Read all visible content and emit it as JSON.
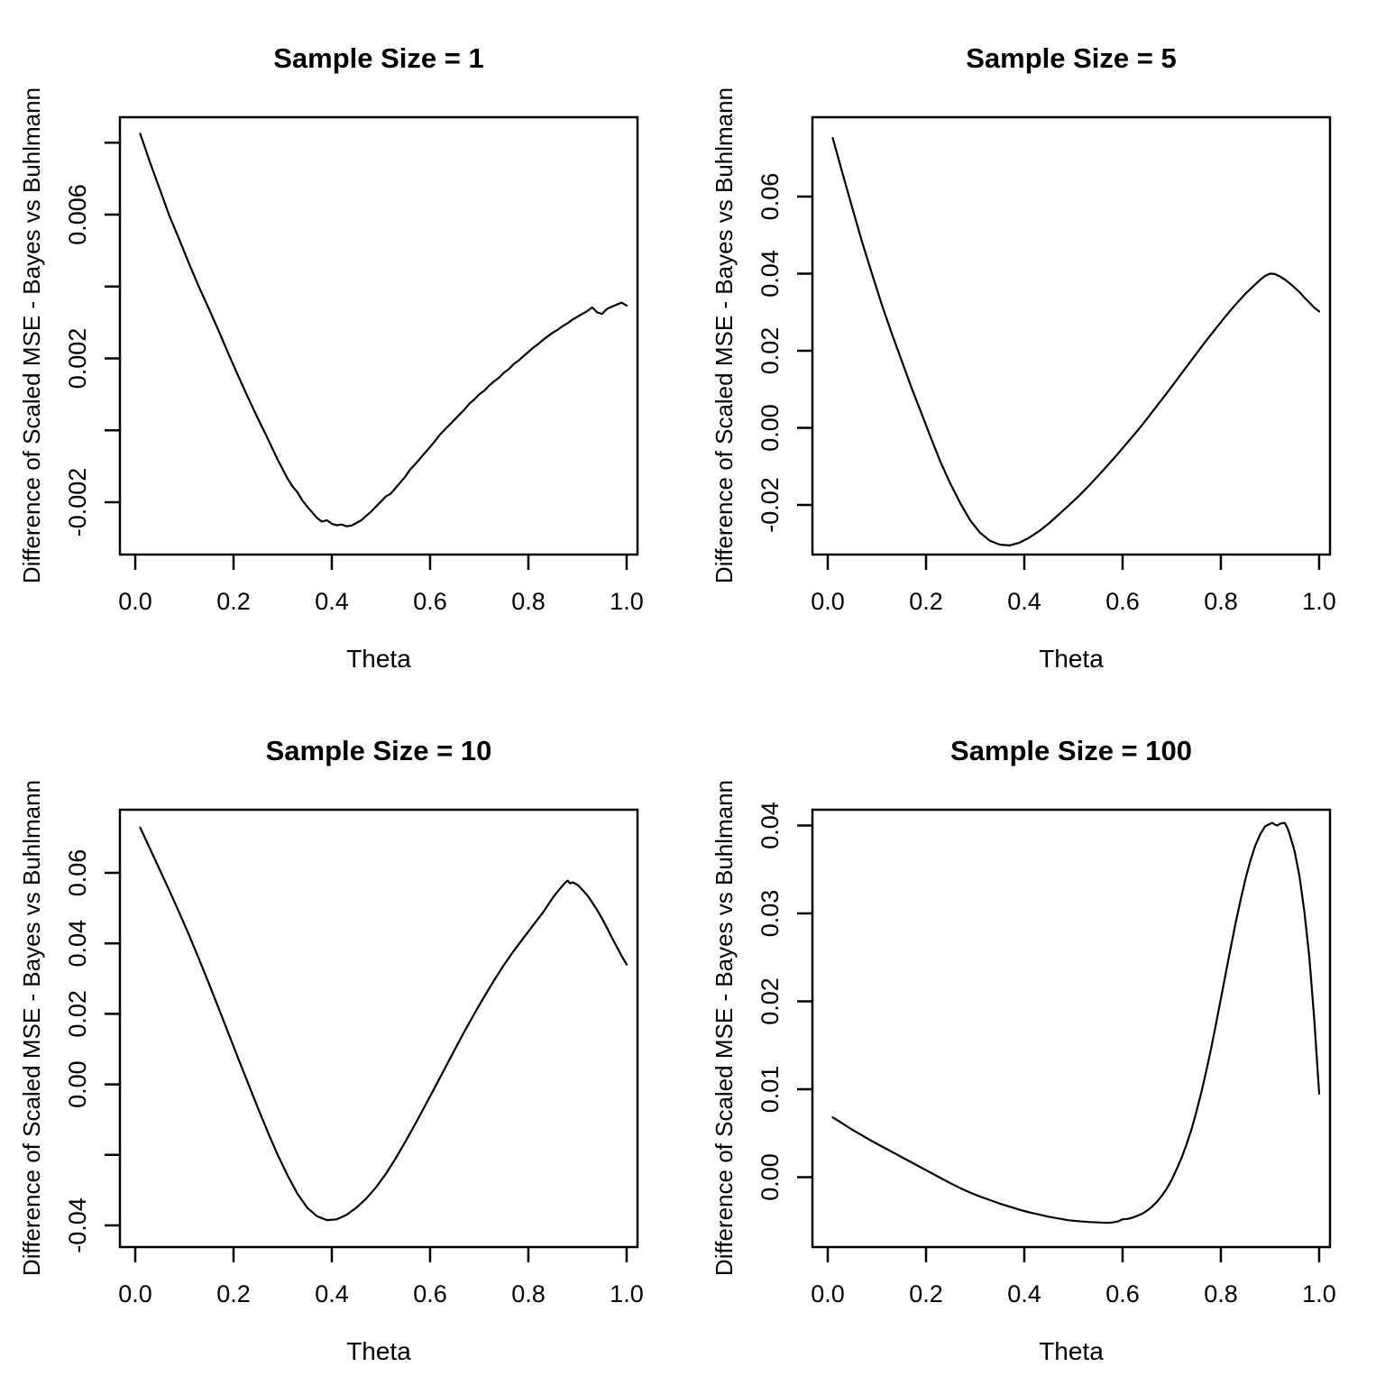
{
  "figure": {
    "background": "#ffffff",
    "layout": "2x2-grid",
    "common_xlabel": "Theta",
    "common_ylabel": "Difference of Scaled MSE - Bayes vs Buhlmann"
  },
  "chart_data": [
    {
      "type": "line",
      "title": "Sample Size = 1",
      "sample_size": 1,
      "xlabel": "Theta",
      "ylabel": "Difference of Scaled MSE - Bayes vs Buhlmann",
      "grid": false,
      "line_color": "#000000",
      "xlim": [
        -0.0312,
        1.0221
      ],
      "ylim": [
        -0.003455,
        0.008709
      ],
      "x_ticks": [
        0,
        0.2,
        0.4,
        0.6,
        0.8,
        1.0
      ],
      "x_tick_labels": [
        "0.0",
        "0.2",
        "0.4",
        "0.6",
        "0.8",
        "1.0"
      ],
      "y_ticks": [
        -0.002,
        0,
        0.002,
        0.004,
        0.006,
        0.008
      ],
      "y_tick_labels": [
        "-0.002",
        "",
        "0.002",
        "",
        "0.006",
        ""
      ],
      "y_scale": 0.001,
      "x": [
        0.01,
        0.03,
        0.05,
        0.07,
        0.09,
        0.11,
        0.13,
        0.15,
        0.17,
        0.19,
        0.21,
        0.23,
        0.25,
        0.27,
        0.29,
        0.31,
        0.32,
        0.33,
        0.34,
        0.35,
        0.36,
        0.37,
        0.38,
        0.39,
        0.4,
        0.41,
        0.42,
        0.43,
        0.44,
        0.45,
        0.46,
        0.47,
        0.48,
        0.49,
        0.5,
        0.51,
        0.52,
        0.53,
        0.54,
        0.55,
        0.56,
        0.57,
        0.58,
        0.59,
        0.6,
        0.61,
        0.62,
        0.63,
        0.64,
        0.65,
        0.66,
        0.67,
        0.68,
        0.69,
        0.7,
        0.71,
        0.72,
        0.73,
        0.74,
        0.75,
        0.76,
        0.77,
        0.78,
        0.79,
        0.8,
        0.81,
        0.82,
        0.83,
        0.84,
        0.85,
        0.86,
        0.87,
        0.88,
        0.89,
        0.9,
        0.91,
        0.92,
        0.93,
        0.94,
        0.95,
        0.96,
        0.97,
        0.98,
        0.99,
        1.0
      ],
      "y": [
        8.25,
        7.45,
        6.7,
        5.95,
        5.3,
        4.62,
        3.98,
        3.38,
        2.76,
        2.12,
        1.5,
        0.9,
        0.32,
        -0.24,
        -0.82,
        -1.34,
        -1.56,
        -1.72,
        -1.95,
        -2.12,
        -2.28,
        -2.44,
        -2.54,
        -2.5,
        -2.6,
        -2.64,
        -2.62,
        -2.67,
        -2.65,
        -2.58,
        -2.5,
        -2.38,
        -2.26,
        -2.12,
        -1.98,
        -1.84,
        -1.76,
        -1.6,
        -1.44,
        -1.28,
        -1.08,
        -0.94,
        -0.78,
        -0.62,
        -0.46,
        -0.3,
        -0.12,
        0.02,
        0.16,
        0.3,
        0.44,
        0.58,
        0.74,
        0.86,
        1.0,
        1.1,
        1.24,
        1.36,
        1.46,
        1.6,
        1.7,
        1.84,
        1.94,
        2.06,
        2.18,
        2.3,
        2.4,
        2.52,
        2.62,
        2.72,
        2.8,
        2.9,
        2.98,
        3.08,
        3.16,
        3.24,
        3.32,
        3.42,
        3.28,
        3.24,
        3.38,
        3.44,
        3.5,
        3.55,
        3.47
      ]
    },
    {
      "type": "line",
      "title": "Sample Size = 5",
      "sample_size": 5,
      "xlabel": "Theta",
      "ylabel": "Difference of Scaled MSE - Bayes vs Buhlmann",
      "grid": false,
      "line_color": "#000000",
      "xlim": [
        -0.0312,
        1.0221
      ],
      "ylim": [
        -0.03287,
        0.08058
      ],
      "x_ticks": [
        0,
        0.2,
        0.4,
        0.6,
        0.8,
        1.0
      ],
      "x_tick_labels": [
        "0.0",
        "0.2",
        "0.4",
        "0.6",
        "0.8",
        "1.0"
      ],
      "y_ticks": [
        -0.02,
        0,
        0.02,
        0.04,
        0.06
      ],
      "y_tick_labels": [
        "-0.02",
        "0.00",
        "0.02",
        "0.04",
        "0.06"
      ],
      "y_scale": 0.01,
      "x": [
        0.01,
        0.03,
        0.05,
        0.07,
        0.09,
        0.11,
        0.13,
        0.15,
        0.17,
        0.19,
        0.21,
        0.23,
        0.25,
        0.27,
        0.29,
        0.31,
        0.33,
        0.35,
        0.37,
        0.39,
        0.41,
        0.43,
        0.45,
        0.47,
        0.49,
        0.51,
        0.53,
        0.55,
        0.57,
        0.59,
        0.61,
        0.63,
        0.65,
        0.67,
        0.69,
        0.71,
        0.73,
        0.75,
        0.77,
        0.79,
        0.81,
        0.83,
        0.85,
        0.86,
        0.87,
        0.88,
        0.89,
        0.9,
        0.91,
        0.92,
        0.93,
        0.94,
        0.95,
        0.96,
        0.97,
        0.98,
        0.99,
        1.0
      ],
      "y": [
        7.52,
        6.6,
        5.7,
        4.82,
        4.0,
        3.2,
        2.46,
        1.76,
        1.06,
        0.4,
        -0.26,
        -0.9,
        -1.46,
        -1.96,
        -2.4,
        -2.72,
        -2.93,
        -3.03,
        -3.05,
        -2.98,
        -2.85,
        -2.68,
        -2.48,
        -2.25,
        -2.02,
        -1.78,
        -1.52,
        -1.25,
        -0.97,
        -0.68,
        -0.38,
        -0.08,
        0.24,
        0.57,
        0.9,
        1.24,
        1.58,
        1.92,
        2.26,
        2.58,
        2.9,
        3.2,
        3.48,
        3.6,
        3.72,
        3.84,
        3.94,
        4.0,
        3.99,
        3.93,
        3.85,
        3.75,
        3.64,
        3.52,
        3.38,
        3.25,
        3.12,
        3.02
      ]
    },
    {
      "type": "line",
      "title": "Sample Size = 10",
      "sample_size": 10,
      "xlabel": "Theta",
      "ylabel": "Difference of Scaled MSE - Bayes vs Buhlmann",
      "grid": false,
      "line_color": "#000000",
      "xlim": [
        -0.0312,
        1.0221
      ],
      "ylim": [
        -0.04614,
        0.0779
      ],
      "x_ticks": [
        0,
        0.2,
        0.4,
        0.6,
        0.8,
        1.0
      ],
      "x_tick_labels": [
        "0.0",
        "0.2",
        "0.4",
        "0.6",
        "0.8",
        "1.0"
      ],
      "y_ticks": [
        -0.04,
        -0.02,
        0,
        0.02,
        0.04,
        0.06
      ],
      "y_tick_labels": [
        "-0.04",
        "",
        "0.00",
        "0.02",
        "0.04",
        "0.06"
      ],
      "y_scale": 0.01,
      "x": [
        0.01,
        0.03,
        0.05,
        0.07,
        0.09,
        0.11,
        0.13,
        0.15,
        0.17,
        0.19,
        0.21,
        0.23,
        0.25,
        0.27,
        0.29,
        0.31,
        0.33,
        0.35,
        0.37,
        0.39,
        0.41,
        0.43,
        0.45,
        0.47,
        0.49,
        0.51,
        0.53,
        0.55,
        0.57,
        0.59,
        0.61,
        0.63,
        0.65,
        0.67,
        0.69,
        0.71,
        0.73,
        0.75,
        0.77,
        0.79,
        0.81,
        0.83,
        0.85,
        0.86,
        0.87,
        0.875,
        0.88,
        0.885,
        0.89,
        0.9,
        0.91,
        0.92,
        0.93,
        0.94,
        0.95,
        0.96,
        0.97,
        0.98,
        0.99,
        1.0
      ],
      "y": [
        7.28,
        6.68,
        6.08,
        5.48,
        4.86,
        4.22,
        3.55,
        2.86,
        2.15,
        1.44,
        0.72,
        0.02,
        -0.68,
        -1.36,
        -2.0,
        -2.58,
        -3.1,
        -3.5,
        -3.74,
        -3.85,
        -3.83,
        -3.7,
        -3.5,
        -3.24,
        -2.92,
        -2.54,
        -2.1,
        -1.62,
        -1.12,
        -0.6,
        -0.08,
        0.45,
        0.98,
        1.5,
        2.0,
        2.48,
        2.94,
        3.38,
        3.78,
        4.15,
        4.52,
        4.88,
        5.3,
        5.48,
        5.64,
        5.72,
        5.78,
        5.7,
        5.73,
        5.66,
        5.52,
        5.36,
        5.16,
        4.94,
        4.7,
        4.44,
        4.16,
        3.9,
        3.64,
        3.4
      ]
    },
    {
      "type": "line",
      "title": "Sample Size = 100",
      "sample_size": 100,
      "xlabel": "Theta",
      "ylabel": "Difference of Scaled MSE - Bayes vs Buhlmann",
      "grid": false,
      "line_color": "#000000",
      "xlim": [
        -0.0312,
        1.0221
      ],
      "ylim": [
        -0.0079487,
        0.041795
      ],
      "x_ticks": [
        0,
        0.2,
        0.4,
        0.6,
        0.8,
        1.0
      ],
      "x_tick_labels": [
        "0.0",
        "0.2",
        "0.4",
        "0.6",
        "0.8",
        "1.0"
      ],
      "y_ticks": [
        0,
        0.01,
        0.02,
        0.03,
        0.04
      ],
      "y_tick_labels": [
        "0.00",
        "0.01",
        "0.02",
        "0.03",
        "0.04"
      ],
      "y_scale": 0.01,
      "x": [
        0.01,
        0.03,
        0.05,
        0.07,
        0.09,
        0.11,
        0.13,
        0.15,
        0.17,
        0.19,
        0.21,
        0.23,
        0.25,
        0.27,
        0.29,
        0.31,
        0.33,
        0.35,
        0.37,
        0.39,
        0.41,
        0.43,
        0.45,
        0.47,
        0.49,
        0.51,
        0.53,
        0.55,
        0.57,
        0.58,
        0.59,
        0.6,
        0.61,
        0.62,
        0.63,
        0.64,
        0.65,
        0.66,
        0.67,
        0.68,
        0.69,
        0.7,
        0.71,
        0.72,
        0.73,
        0.74,
        0.75,
        0.76,
        0.77,
        0.78,
        0.79,
        0.8,
        0.81,
        0.82,
        0.83,
        0.84,
        0.85,
        0.86,
        0.87,
        0.88,
        0.89,
        0.9,
        0.905,
        0.91,
        0.915,
        0.92,
        0.93,
        0.935,
        0.94,
        0.95,
        0.96,
        0.97,
        0.98,
        0.99,
        1.0
      ],
      "y": [
        0.68,
        0.61,
        0.54,
        0.475,
        0.41,
        0.35,
        0.29,
        0.23,
        0.17,
        0.11,
        0.05,
        -0.01,
        -0.07,
        -0.125,
        -0.175,
        -0.22,
        -0.26,
        -0.3,
        -0.335,
        -0.37,
        -0.4,
        -0.425,
        -0.45,
        -0.47,
        -0.49,
        -0.5,
        -0.51,
        -0.515,
        -0.52,
        -0.515,
        -0.505,
        -0.48,
        -0.475,
        -0.46,
        -0.44,
        -0.415,
        -0.38,
        -0.335,
        -0.28,
        -0.21,
        -0.13,
        -0.03,
        0.09,
        0.22,
        0.37,
        0.54,
        0.74,
        0.96,
        1.2,
        1.46,
        1.74,
        2.03,
        2.32,
        2.61,
        2.89,
        3.15,
        3.39,
        3.6,
        3.77,
        3.9,
        3.99,
        4.02,
        4.03,
        4.01,
        4.0,
        4.02,
        4.03,
        3.98,
        3.9,
        3.71,
        3.42,
        3.02,
        2.5,
        1.8,
        0.95
      ]
    }
  ]
}
